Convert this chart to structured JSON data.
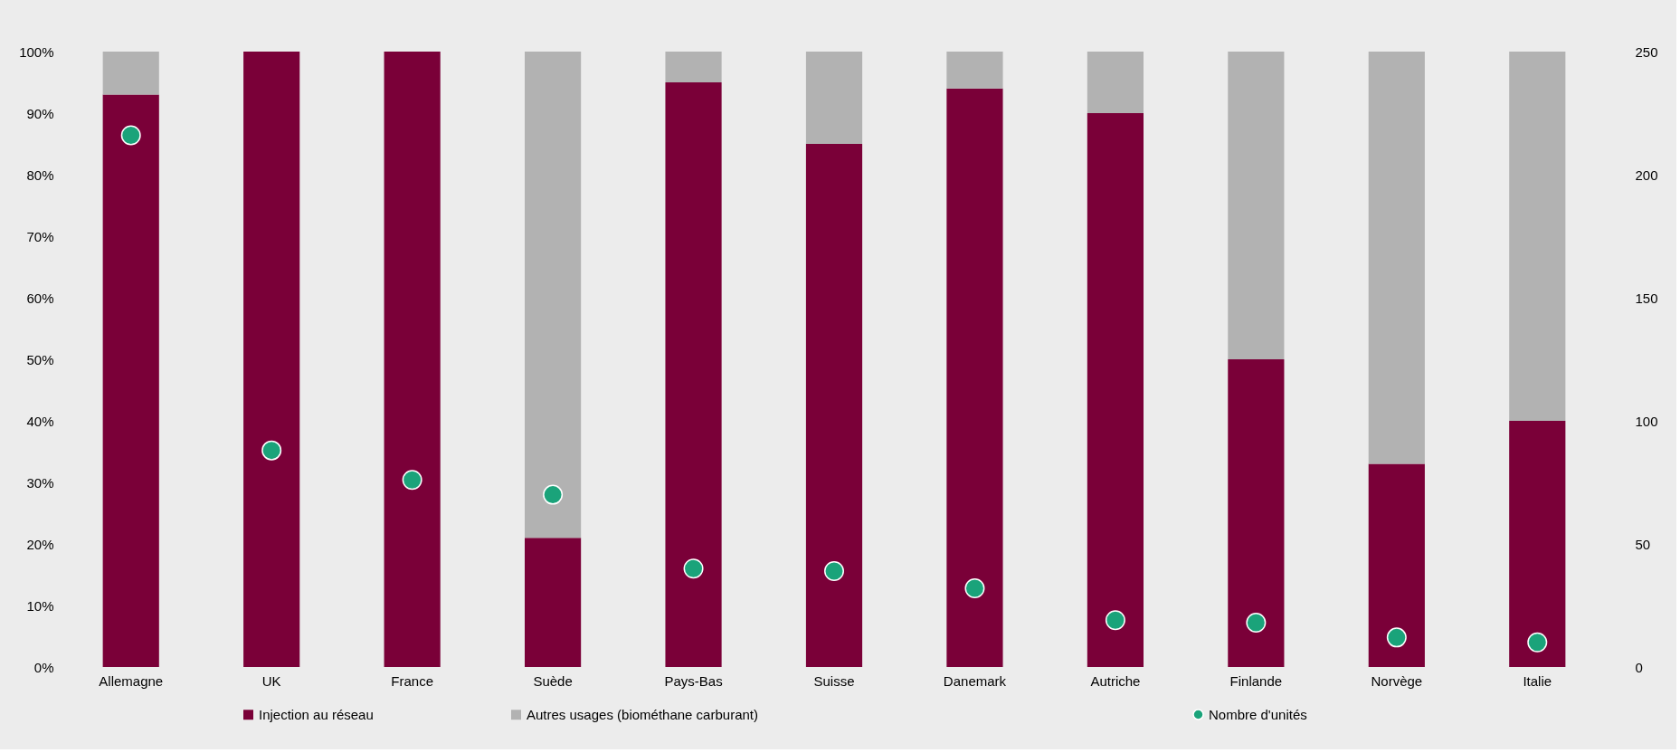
{
  "chart_data": {
    "type": "bar",
    "stacked": true,
    "legend": "bottom",
    "grid": false,
    "marker": "circle",
    "categories": [
      "Allemagne",
      "UK",
      "France",
      "Suède",
      "Pays-Bas",
      "Suisse",
      "Danemark",
      "Autriche",
      "Finlande",
      "Norvège",
      "Italie"
    ],
    "ylim": [
      0,
      100
    ],
    "yticks": [
      {
        "value": 0,
        "label": "0%"
      },
      {
        "value": 10,
        "label": "10%"
      },
      {
        "value": 20,
        "label": "20%"
      },
      {
        "value": 30,
        "label": "30%"
      },
      {
        "value": 40,
        "label": "40%"
      },
      {
        "value": 50,
        "label": "50%"
      },
      {
        "value": 60,
        "label": "60%"
      },
      {
        "value": 70,
        "label": "70%"
      },
      {
        "value": 80,
        "label": "80%"
      },
      {
        "value": 90,
        "label": "90%"
      },
      {
        "value": 100,
        "label": "100%"
      }
    ],
    "y2lim": [
      0,
      250
    ],
    "y2ticks": [
      0,
      50,
      100,
      150,
      200,
      250
    ],
    "series": [
      {
        "name": "Injection au réseau",
        "color": "#7a0038",
        "values": [
          93,
          100,
          100,
          21,
          95,
          85,
          94,
          90,
          50,
          33,
          40
        ]
      },
      {
        "name": "Autres usages (biométhane carburant)",
        "color": "#b2b2b2",
        "values": [
          7,
          0,
          0,
          79,
          5,
          15,
          6,
          10,
          50,
          67,
          60
        ]
      },
      {
        "name": "Nombre d'unités",
        "type": "scatter",
        "axis": "y2",
        "color": "#1aa37a",
        "values": [
          216,
          88,
          76,
          70,
          40,
          39,
          32,
          19,
          18,
          12,
          10
        ]
      }
    ]
  }
}
